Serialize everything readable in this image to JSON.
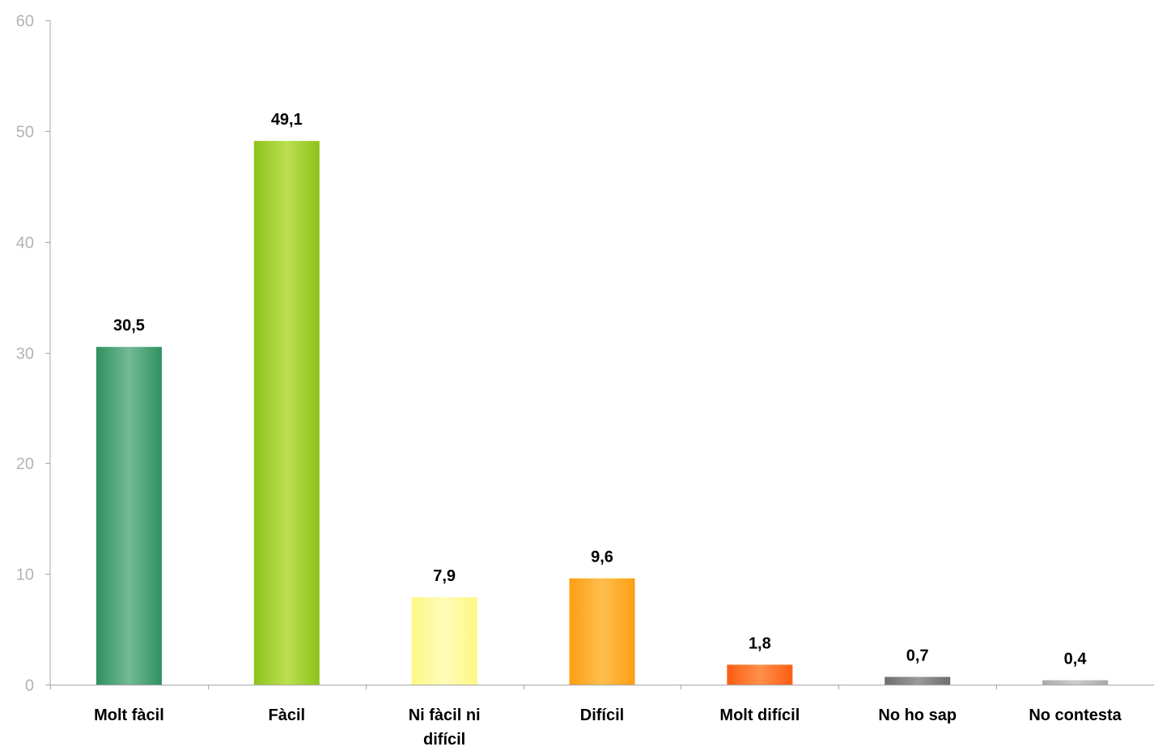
{
  "chart_data": {
    "type": "bar",
    "title": "",
    "xlabel": "",
    "ylabel": "",
    "ylim": [
      0,
      60
    ],
    "yticks": [
      0,
      10,
      20,
      30,
      40,
      50,
      60
    ],
    "grid": false,
    "legend": "none",
    "categories": [
      [
        "Molt fàcil"
      ],
      [
        "Fàcil"
      ],
      [
        "Ni fàcil ni",
        "difícil"
      ],
      [
        "Difícil"
      ],
      [
        "Molt difícil"
      ],
      [
        "No ho sap"
      ],
      [
        "No contesta"
      ]
    ],
    "values": [
      30.5,
      49.1,
      7.9,
      9.6,
      1.8,
      0.7,
      0.4
    ],
    "value_labels": [
      "30,5",
      "49,1",
      "7,9",
      "9,6",
      "1,8",
      "0,7",
      "0,4"
    ],
    "colors": [
      {
        "edge": "#2e9160",
        "center": "#72ba94"
      },
      {
        "edge": "#8cc31a",
        "center": "#bcdf50"
      },
      {
        "edge": "#fdf785",
        "center": "#fffcb8"
      },
      {
        "edge": "#fd9e12",
        "center": "#ffbf4d"
      },
      {
        "edge": "#fb5e12",
        "center": "#ff8f4a"
      },
      {
        "edge": "#6e6e6e",
        "center": "#9a9a9a"
      },
      {
        "edge": "#a9a9a9",
        "center": "#cccccc"
      }
    ],
    "axis_color": "#a6a6a6",
    "tick_label_color": "#b3b3b3"
  }
}
